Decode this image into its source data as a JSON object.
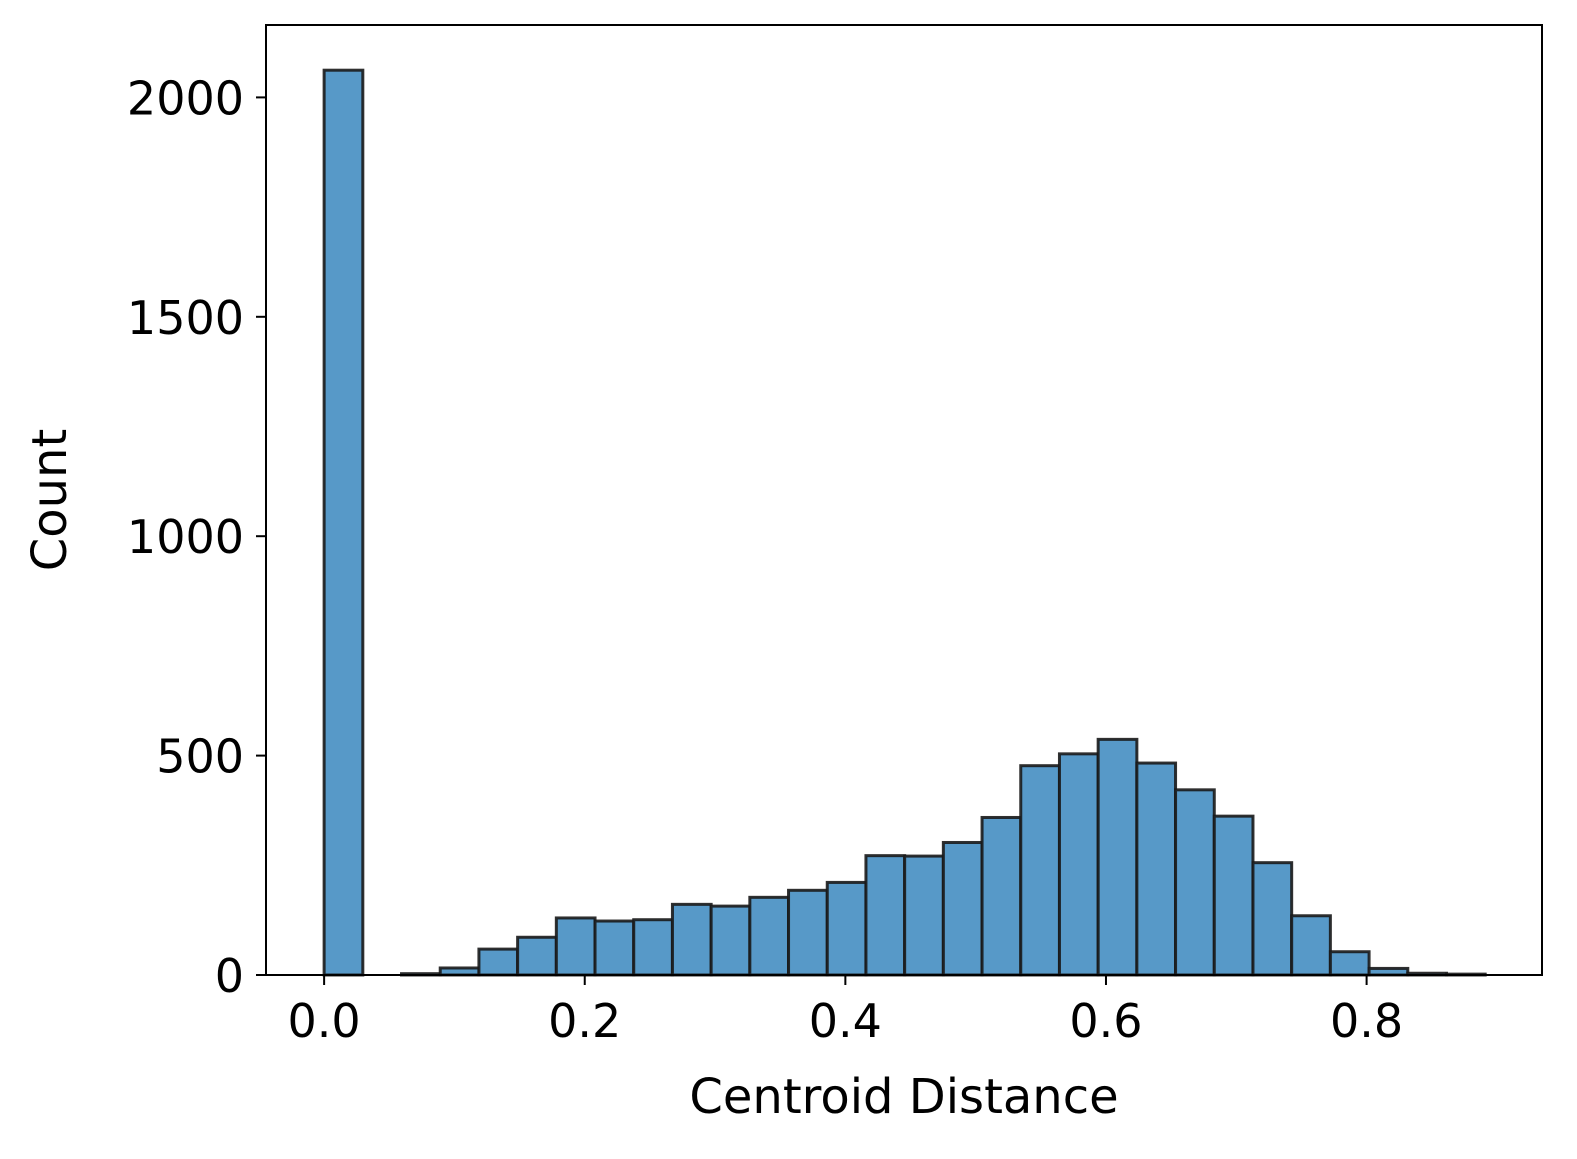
{
  "chart_data": {
    "type": "bar",
    "subtype": "histogram",
    "title": "",
    "xlabel": "Centroid Distance",
    "ylabel": "Count",
    "xlim": [
      -0.0446,
      0.9346
    ],
    "ylim": [
      0,
      2165
    ],
    "xticks": [
      0.0,
      0.2,
      0.4,
      0.6,
      0.8
    ],
    "xtick_labels": [
      "0.0",
      "0.2",
      "0.4",
      "0.6",
      "0.8"
    ],
    "yticks": [
      0,
      500,
      1000,
      1500,
      2000
    ],
    "ytick_labels": [
      "0",
      "500",
      "1000",
      "1500",
      "2000"
    ],
    "grid": false,
    "legend": "none",
    "bin_width": 0.0297,
    "bin_start": 0.0,
    "values": [
      2062,
      0,
      3,
      16,
      59,
      86,
      130,
      123,
      126,
      161,
      157,
      177,
      193,
      211,
      272,
      271,
      302,
      359,
      477,
      504,
      537,
      483,
      422,
      362,
      256,
      135,
      53,
      15,
      4,
      2
    ],
    "bar_color": "#5799c8",
    "edge_color": "#1a1a1a"
  }
}
